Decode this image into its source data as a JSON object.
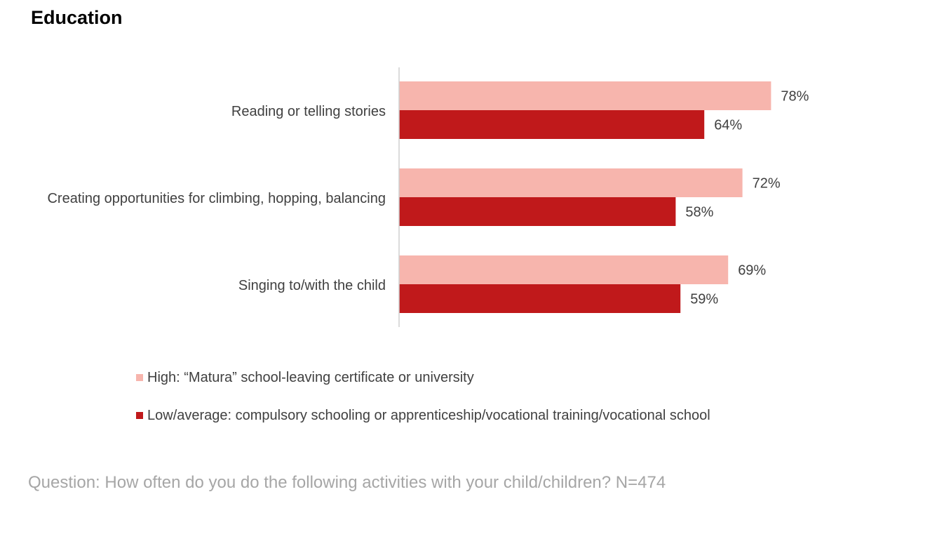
{
  "title": "Education",
  "footnote": "Question: How often do you do the following activities with your child/children? N=474",
  "colors": {
    "high": "#f7b5ad",
    "low": "#c0191b",
    "axis": "#cfcfcf",
    "label": "#404040"
  },
  "chart_data": {
    "type": "bar",
    "orientation": "horizontal",
    "title": "",
    "categories": [
      "Reading or telling stories",
      "Creating opportunities for climbing, hopping, balancing",
      "Singing to/with the child"
    ],
    "series": [
      {
        "name": "High: “Matura” school-leaving certificate or university",
        "values": [
          78,
          72,
          69
        ]
      },
      {
        "name": "Low/average: compulsory schooling or apprenticeship/vocational training/vocational school",
        "values": [
          64,
          58,
          59
        ]
      }
    ],
    "value_suffix": "%",
    "xlim": [
      0,
      100
    ],
    "grid": false,
    "legend_position": "bottom"
  }
}
